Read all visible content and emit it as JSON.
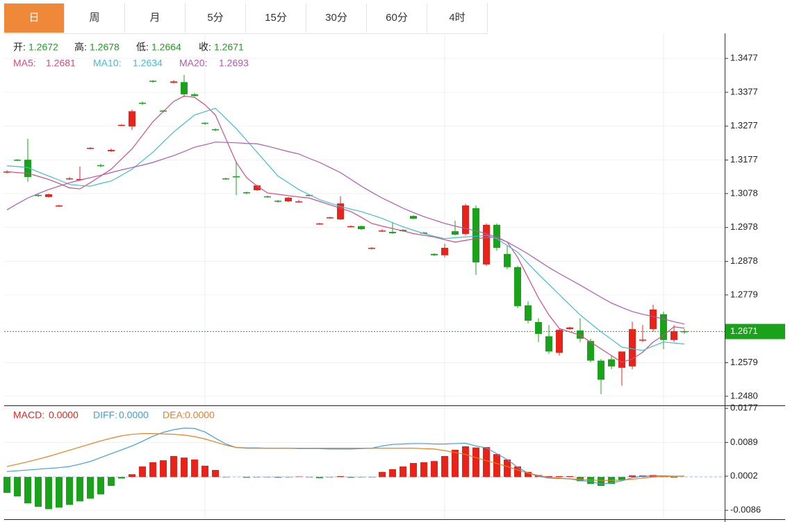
{
  "tabs": {
    "items": [
      "日",
      "周",
      "月",
      "5分",
      "15分",
      "30分",
      "60分",
      "4时"
    ],
    "active": 0
  },
  "chart_data": [
    {
      "type": "candlestick",
      "up_color": "#e8231a",
      "down_color": "#1aa31a",
      "ohlc_legend": [
        {
          "label": "开:",
          "value": 1.2672
        },
        {
          "label": "高:",
          "value": 1.2678
        },
        {
          "label": "低:",
          "value": 1.2664
        },
        {
          "label": "收:",
          "value": 1.2671
        }
      ],
      "open": [
        1.3141,
        1.3178,
        1.3178,
        1.3074,
        1.3068,
        1.3041,
        1.3121,
        1.3119,
        1.3211,
        1.3162,
        1.3203,
        1.3279,
        1.3276,
        1.3346,
        1.3411,
        1.3323,
        1.3405,
        1.3407,
        1.3371,
        1.3287,
        1.3268,
        1.3123,
        1.3129,
        1.3082,
        1.3088,
        1.307,
        1.3057,
        1.3055,
        1.3053,
        1.3074,
        1.2988,
        1.3006,
        1.3002,
        1.298,
        1.2982,
        1.2916,
        1.2967,
        1.2965,
        1.2971,
        1.3012,
        1.2963,
        1.29,
        1.2896,
        1.2967,
        1.2959,
        1.3035,
        1.2869,
        1.2986,
        1.29,
        1.2861,
        1.2748,
        1.2699,
        1.2657,
        1.2608,
        1.2678,
        1.2674,
        1.2643,
        1.2585,
        1.2589,
        1.2564,
        1.2568,
        1.2645,
        1.2678,
        1.2722,
        1.2646,
        1.2672
      ],
      "high": [
        1.3147,
        1.318,
        1.324,
        1.3078,
        1.3078,
        1.3045,
        1.3127,
        1.3158,
        1.3215,
        1.3166,
        1.3211,
        1.3283,
        1.3326,
        1.335,
        1.3413,
        1.3325,
        1.3413,
        1.3428,
        1.3375,
        1.3289,
        1.327,
        1.3125,
        1.3174,
        1.3084,
        1.3104,
        1.3072,
        1.3059,
        1.3068,
        1.3059,
        1.3076,
        1.2992,
        1.301,
        1.307,
        1.2984,
        1.2984,
        1.292,
        1.2973,
        1.2994,
        1.2973,
        1.3014,
        1.2965,
        1.2902,
        1.293,
        1.2998,
        1.3048,
        1.3043,
        1.299,
        1.299,
        1.2925,
        1.2865,
        1.276,
        1.271,
        1.269,
        1.268,
        1.2685,
        1.271,
        1.265,
        1.259,
        1.26,
        1.261,
        1.27,
        1.269,
        1.275,
        1.273,
        1.269,
        1.2678
      ],
      "low": [
        1.3138,
        1.3174,
        1.3113,
        1.3068,
        1.3066,
        1.3039,
        1.3119,
        1.3115,
        1.3209,
        1.3156,
        1.3201,
        1.3277,
        1.3266,
        1.334,
        1.3405,
        1.3317,
        1.3403,
        1.3362,
        1.3364,
        1.3281,
        1.3262,
        1.3119,
        1.3074,
        1.3076,
        1.3086,
        1.3066,
        1.3051,
        1.3053,
        1.3051,
        1.307,
        1.2986,
        1.3004,
        1.3,
        1.2978,
        1.2971,
        1.2914,
        1.2965,
        1.2959,
        1.2965,
        1.3002,
        1.2959,
        1.2894,
        1.289,
        1.2955,
        1.2955,
        1.2838,
        1.2865,
        1.291,
        1.2855,
        1.274,
        1.2695,
        1.264,
        1.2605,
        1.26,
        1.2676,
        1.264,
        1.258,
        1.2486,
        1.256,
        1.2511,
        1.256,
        1.264,
        1.267,
        1.2619,
        1.264,
        1.2664
      ],
      "close": [
        1.3143,
        1.3176,
        1.3127,
        1.3072,
        1.3076,
        1.3043,
        1.3123,
        1.3121,
        1.3213,
        1.316,
        1.3207,
        1.3281,
        1.3321,
        1.3344,
        1.3409,
        1.3321,
        1.3409,
        1.3371,
        1.3366,
        1.3285,
        1.3266,
        1.3121,
        1.3127,
        1.308,
        1.3102,
        1.3068,
        1.3055,
        1.3066,
        1.3055,
        1.3072,
        1.299,
        1.3008,
        1.3049,
        1.2982,
        1.2973,
        1.2918,
        1.2969,
        1.2961,
        1.2967,
        1.3004,
        1.2961,
        1.2896,
        1.2918,
        1.2957,
        1.3043,
        1.2875,
        1.2986,
        1.2918,
        1.2861,
        1.2746,
        1.2703,
        1.2664,
        1.2612,
        1.2676,
        1.2683,
        1.265,
        1.2585,
        1.2529,
        1.2568,
        1.2612,
        1.2678,
        1.2647,
        1.2736,
        1.2646,
        1.2672,
        1.2671
      ],
      "series": [
        {
          "name": "MA5:",
          "color": "#d9497c",
          "legend_value": 1.2681,
          "values": [
            1.3143,
            1.314,
            1.3138,
            1.3129,
            1.312,
            1.3108,
            1.3095,
            1.3092,
            1.311,
            1.313,
            1.315,
            1.318,
            1.321,
            1.325,
            1.329,
            1.332,
            1.335,
            1.3366,
            1.3362,
            1.334,
            1.331,
            1.324,
            1.317,
            1.3125,
            1.31,
            1.308,
            1.3076,
            1.3072,
            1.3068,
            1.3065,
            1.3055,
            1.3045,
            1.3035,
            1.3025,
            1.3008,
            1.299,
            1.2982,
            1.2975,
            1.2968,
            1.296,
            1.2955,
            1.295,
            1.2942,
            1.2935,
            1.294,
            1.2945,
            1.2948,
            1.295,
            1.2935,
            1.289,
            1.283,
            1.277,
            1.272,
            1.268,
            1.267,
            1.266,
            1.264,
            1.262,
            1.26,
            1.258,
            1.259,
            1.261,
            1.264,
            1.266,
            1.2685,
            1.2681
          ]
        },
        {
          "name": "MA10:",
          "color": "#3fbcd6",
          "legend_value": 1.2634,
          "values": [
            1.316,
            1.3158,
            1.3155,
            1.3142,
            1.313,
            1.3118,
            1.3105,
            1.3102,
            1.31,
            1.3108,
            1.3115,
            1.3132,
            1.315,
            1.3175,
            1.32,
            1.323,
            1.326,
            1.3285,
            1.331,
            1.332,
            1.333,
            1.33,
            1.327,
            1.3235,
            1.32,
            1.3165,
            1.313,
            1.311,
            1.309,
            1.3075,
            1.306,
            1.305,
            1.304,
            1.3032,
            1.3025,
            1.3015,
            1.3005,
            1.2992,
            1.298,
            1.297,
            1.296,
            1.2952,
            1.2945,
            1.2948,
            1.295,
            1.2952,
            1.2955,
            1.2945,
            1.2925,
            1.2905,
            1.2872,
            1.284,
            1.281,
            1.278,
            1.275,
            1.272,
            1.2695,
            1.267,
            1.2648,
            1.2625,
            1.262,
            1.2615,
            1.2628,
            1.264,
            1.2637,
            1.2634
          ]
        },
        {
          "name": "MA20:",
          "color": "#b455b6",
          "legend_value": 1.2693,
          "values": [
            1.303,
            1.3048,
            1.3065,
            1.3078,
            1.309,
            1.31,
            1.311,
            1.3118,
            1.3125,
            1.3132,
            1.314,
            1.3148,
            1.3155,
            1.3162,
            1.317,
            1.318,
            1.319,
            1.3202,
            1.3215,
            1.3222,
            1.323,
            1.3229,
            1.3228,
            1.3226,
            1.3225,
            1.3218,
            1.321,
            1.3202,
            1.3195,
            1.3182,
            1.317,
            1.3155,
            1.314,
            1.312,
            1.31,
            1.3082,
            1.3065,
            1.305,
            1.3035,
            1.3022,
            1.301,
            1.3,
            1.299,
            1.2982,
            1.2975,
            1.2968,
            1.296,
            1.2948,
            1.2935,
            1.2918,
            1.29,
            1.288,
            1.286,
            1.2842,
            1.2825,
            1.2808,
            1.279,
            1.2772,
            1.2755,
            1.2742,
            1.273,
            1.2722,
            1.2715,
            1.2708,
            1.27,
            1.2693
          ]
        }
      ],
      "last_price": 1.2671,
      "last_price_color": "#1aa31a",
      "ylim": [
        1.2453,
        1.3551
      ],
      "yticks": [
        1.3477,
        1.3377,
        1.3277,
        1.3177,
        1.3078,
        1.2978,
        1.2878,
        1.2779,
        1.2579,
        {
          "value": 1.248,
          "label": "1.2480"
        }
      ],
      "grid": true
    },
    {
      "type": "macd",
      "series": [
        {
          "name": "MACD:",
          "type": "bar",
          "color": "#e8231a",
          "down_color": "#1aa31a",
          "legend_value": {
            "value": 0,
            "label": "0.0000"
          },
          "values": [
            -0.0041,
            -0.005,
            -0.0068,
            -0.0077,
            -0.0083,
            -0.0079,
            -0.0072,
            -0.0063,
            -0.0056,
            -0.0045,
            -0.0023,
            -0.0004,
            0.0007,
            0.0027,
            0.0038,
            0.0043,
            0.0054,
            0.005,
            0.0045,
            0.0029,
            0.0018,
            -0.0001,
            0,
            -0.0002,
            -0.0001,
            -0.0001,
            -0.0002,
            -0.0001,
            0.0001,
            -0.0001,
            -0.0003,
            -0.0001,
            0.0002,
            -0.0002,
            -0.0001,
            -0.0001,
            0.0013,
            0.002,
            0.0027,
            0.0036,
            0.0038,
            0.0041,
            0.0054,
            0.007,
            0.0079,
            0.0076,
            0.0077,
            0.0059,
            0.0045,
            0.0027,
            0.0013,
            0.0005,
            0.0002,
            0.0002,
            0.0002,
            -0.0011,
            -0.0018,
            -0.0023,
            -0.0018,
            -0.0009,
            0.0004,
            0.0004,
            0.0005,
            0.0002,
            -0.0002,
            0
          ]
        },
        {
          "name": "DIFF:",
          "type": "line",
          "color": "#3d9ee0",
          "legend_value": {
            "value": 0,
            "label": "0.0000"
          },
          "values": [
            0.0014,
            0.0016,
            0.0018,
            0.002,
            0.0022,
            0.0024,
            0.0027,
            0.0033,
            0.004,
            0.005,
            0.006,
            0.007,
            0.008,
            0.0092,
            0.0105,
            0.0115,
            0.0122,
            0.0126,
            0.0125,
            0.0116,
            0.01,
            0.0085,
            0.0076,
            0.0075,
            0.0075,
            0.0074,
            0.0074,
            0.0074,
            0.0073,
            0.0073,
            0.0073,
            0.0072,
            0.0072,
            0.0072,
            0.0073,
            0.0074,
            0.008,
            0.0084,
            0.0085,
            0.0086,
            0.0086,
            0.0085,
            0.0085,
            0.0086,
            0.0087,
            0.008,
            0.0075,
            0.006,
            0.0045,
            0.0025,
            0.001,
            0.0002,
            -0.0003,
            -0.0004,
            -0.0005,
            -0.0009,
            -0.0012,
            -0.0018,
            -0.0015,
            -0.001,
            -0.0002,
            0.0002,
            0.0003,
            0.0003,
            0.0002,
            0.0002
          ]
        },
        {
          "name": "DEA:",
          "type": "line",
          "color": "#ee7d1e",
          "legend_value": {
            "value": 0,
            "label": "0.0000"
          },
          "values": [
            0.0027,
            0.0033,
            0.0039,
            0.0046,
            0.0053,
            0.0061,
            0.0069,
            0.0077,
            0.0085,
            0.0093,
            0.01,
            0.0106,
            0.011,
            0.0112,
            0.0112,
            0.0111,
            0.011,
            0.0108,
            0.0104,
            0.0098,
            0.009,
            0.0082,
            0.0076,
            0.0074,
            0.0074,
            0.0074,
            0.0074,
            0.0074,
            0.0074,
            0.0074,
            0.0074,
            0.0074,
            0.0074,
            0.0074,
            0.0074,
            0.0074,
            0.0074,
            0.0074,
            0.0074,
            0.0074,
            0.0073,
            0.0072,
            0.0068,
            0.0063,
            0.0058,
            0.005,
            0.0042,
            0.0035,
            0.0027,
            0.0018,
            0.001,
            0.0004,
            -0.0001,
            -0.0003,
            -0.0005,
            -0.0006,
            -0.0008,
            -0.0009,
            -0.0009,
            -0.0008,
            -0.0006,
            -0.0003,
            0,
            0.0001,
            0.0002,
            0.0002
          ]
        }
      ],
      "ylim": [
        -0.0109,
        0.0181
      ],
      "yticks": [
        0.0177,
        0.0089,
        0.0002,
        -0.0086
      ],
      "grid": true
    }
  ]
}
